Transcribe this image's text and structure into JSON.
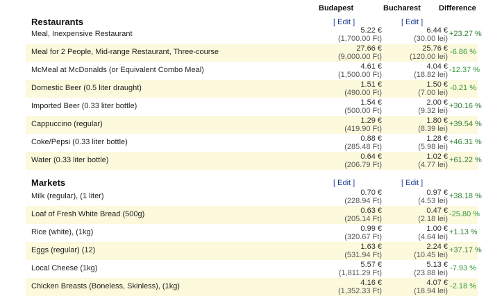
{
  "headers": {
    "budapest": "Budapest",
    "bucharest": "Bucharest",
    "difference": "Difference"
  },
  "colors": {
    "alt_row": "#fcf9dc",
    "link": "#1a3d8f",
    "diff_text": "#2f9a3a"
  },
  "sections": [
    {
      "title": "Restaurants",
      "edit_budapest": "[ Edit ]",
      "edit_bucharest": "[ Edit ]",
      "rows": [
        {
          "name": "Meal, Inexpensive Restaurant",
          "bud_eur": "5.22 €",
          "bud_loc": "(1,700.00 Ft)",
          "buc_eur": "6.44 €",
          "buc_loc": "(30.00 lei)",
          "diff": "+23.27 %"
        },
        {
          "name": "Meal for 2 People, Mid-range Restaurant, Three-course",
          "bud_eur": "27.66 €",
          "bud_loc": "(9,000.00 Ft)",
          "buc_eur": "25.76 €",
          "buc_loc": "(120.00 lei)",
          "diff": "-6.86 %"
        },
        {
          "name": "McMeal at McDonalds (or Equivalent Combo Meal)",
          "bud_eur": "4.61 €",
          "bud_loc": "(1,500.00 Ft)",
          "buc_eur": "4.04 €",
          "buc_loc": "(18.82 lei)",
          "diff": "-12.37 %"
        },
        {
          "name": "Domestic Beer (0.5 liter draught)",
          "bud_eur": "1.51 €",
          "bud_loc": "(490.00 Ft)",
          "buc_eur": "1.50 €",
          "buc_loc": "(7.00 lei)",
          "diff": "-0.21 %"
        },
        {
          "name": "Imported Beer (0.33 liter bottle)",
          "bud_eur": "1.54 €",
          "bud_loc": "(500.00 Ft)",
          "buc_eur": "2.00 €",
          "buc_loc": "(9.32 lei)",
          "diff": "+30.16 %"
        },
        {
          "name": "Cappuccino (regular)",
          "bud_eur": "1.29 €",
          "bud_loc": "(419.90 Ft)",
          "buc_eur": "1.80 €",
          "buc_loc": "(8.39 lei)",
          "diff": "+39.54 %"
        },
        {
          "name": "Coke/Pepsi (0.33 liter bottle)",
          "bud_eur": "0.88 €",
          "bud_loc": "(285.48 Ft)",
          "buc_eur": "1.28 €",
          "buc_loc": "(5.98 lei)",
          "diff": "+46.31 %"
        },
        {
          "name": "Water (0.33 liter bottle)",
          "bud_eur": "0.64 €",
          "bud_loc": "(206.79 Ft)",
          "buc_eur": "1.02 €",
          "buc_loc": "(4.77 lei)",
          "diff": "+61.22 %"
        }
      ]
    },
    {
      "title": "Markets",
      "edit_budapest": "[ Edit ]",
      "edit_bucharest": "[ Edit ]",
      "rows": [
        {
          "name": "Milk (regular), (1 liter)",
          "bud_eur": "0.70 €",
          "bud_loc": "(228.94 Ft)",
          "buc_eur": "0.97 €",
          "buc_loc": "(4.53 lei)",
          "diff": "+38.18 %"
        },
        {
          "name": "Loaf of Fresh White Bread (500g)",
          "bud_eur": "0.63 €",
          "bud_loc": "(205.14 Ft)",
          "buc_eur": "0.47 €",
          "buc_loc": "(2.18 lei)",
          "diff": "-25.80 %"
        },
        {
          "name": "Rice (white), (1kg)",
          "bud_eur": "0.99 €",
          "bud_loc": "(320.67 Ft)",
          "buc_eur": "1.00 €",
          "buc_loc": "(4.64 lei)",
          "diff": "+1.13 %"
        },
        {
          "name": "Eggs (regular) (12)",
          "bud_eur": "1.63 €",
          "bud_loc": "(531.94 Ft)",
          "buc_eur": "2.24 €",
          "buc_loc": "(10.45 lei)",
          "diff": "+37.17 %"
        },
        {
          "name": "Local Cheese (1kg)",
          "bud_eur": "5.57 €",
          "bud_loc": "(1,811.29 Ft)",
          "buc_eur": "5.13 €",
          "buc_loc": "(23.88 lei)",
          "diff": "-7.93 %"
        },
        {
          "name": "Chicken Breasts (Boneless, Skinless), (1kg)",
          "bud_eur": "4.16 €",
          "bud_loc": "(1,352.33 Ft)",
          "buc_eur": "4.07 €",
          "buc_loc": "(18.94 lei)",
          "diff": "-2.18 %"
        }
      ]
    }
  ]
}
